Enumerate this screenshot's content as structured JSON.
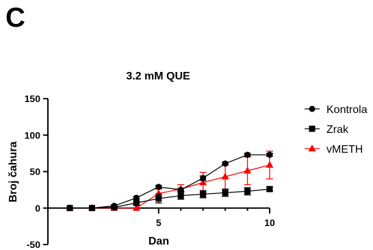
{
  "panel_label": "C",
  "chart_data": {
    "type": "line",
    "title": "3.2 mM QUE",
    "xlabel": "Dan",
    "ylabel": "Broj čahura",
    "xlim": [
      0.5,
      10
    ],
    "ylim": [
      -50,
      150
    ],
    "x_ticks": [
      5,
      10
    ],
    "y_ticks": [
      -50,
      0,
      50,
      100,
      150
    ],
    "x_tick_labels": [
      "5",
      "10"
    ],
    "y_tick_labels": [
      "-50",
      "0",
      "50",
      "100",
      "150"
    ],
    "grid": false,
    "legend_position": "right",
    "x": [
      1,
      2,
      3,
      4,
      5,
      6,
      7,
      8,
      9,
      10
    ],
    "series": [
      {
        "name": "Kontrola",
        "marker": "circle",
        "color": "#000000",
        "values": [
          0,
          0,
          3,
          14,
          29,
          25,
          41,
          61,
          73,
          73
        ],
        "errors": [
          0,
          0,
          1,
          2,
          2,
          2,
          3,
          2,
          2,
          2
        ]
      },
      {
        "name": "Zrak",
        "marker": "square",
        "color": "#000000",
        "values": [
          0,
          0,
          1,
          7,
          13,
          17,
          19,
          21,
          23,
          26
        ],
        "errors": [
          0,
          0,
          1,
          2,
          6,
          5,
          5,
          5,
          5,
          3
        ]
      },
      {
        "name": "vMETH",
        "marker": "triangle",
        "color": "#ff0000",
        "values": [
          0,
          0,
          0,
          0,
          20,
          26,
          35,
          43,
          51,
          59
        ],
        "errors": [
          0,
          0,
          0,
          0,
          6,
          6,
          14,
          17,
          19,
          19
        ]
      }
    ]
  }
}
